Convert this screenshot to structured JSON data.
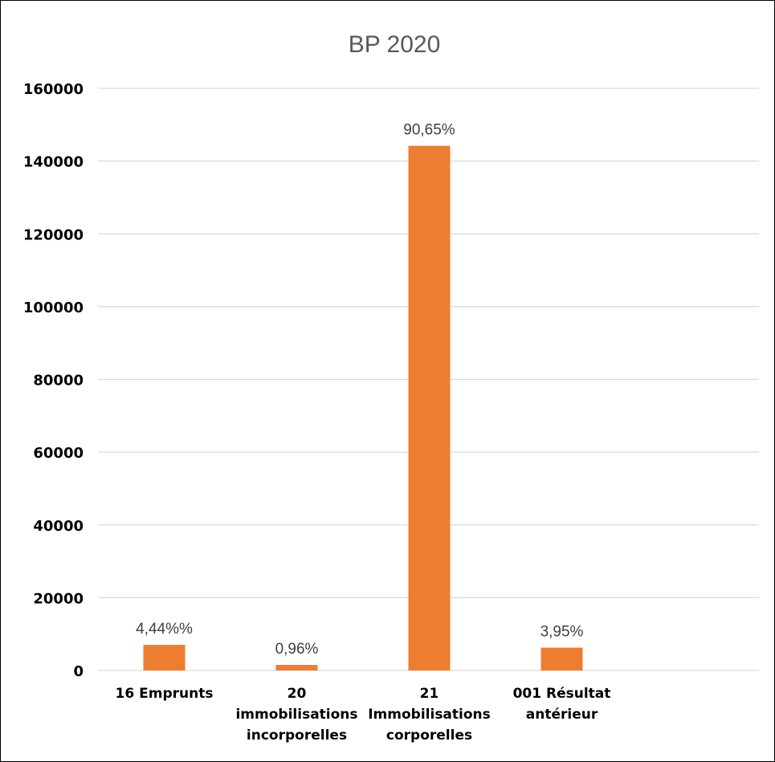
{
  "chart_data": {
    "type": "bar",
    "title": "BP 2020",
    "xlabel": "",
    "ylabel": "",
    "ylim": [
      0,
      160000
    ],
    "yticks": [
      "0",
      "20000",
      "40000",
      "60000",
      "80000",
      "100000",
      "120000",
      "140000",
      "160000"
    ],
    "grid": true,
    "legend": "none",
    "categories": [
      [
        "16 Emprunts"
      ],
      [
        "20",
        "immobilisations",
        "incorporelles"
      ],
      [
        "21",
        "Immobilisations",
        "corporelles"
      ],
      [
        "001 Résultat",
        "antérieur"
      ]
    ],
    "values": [
      7050,
      1530,
      144200,
      6270
    ],
    "data_labels": [
      "4,44%%",
      "0,96%",
      "90,65%",
      "3,95%"
    ],
    "bar_color": "#ED7D31",
    "grid_color": "#D9D9D9"
  }
}
